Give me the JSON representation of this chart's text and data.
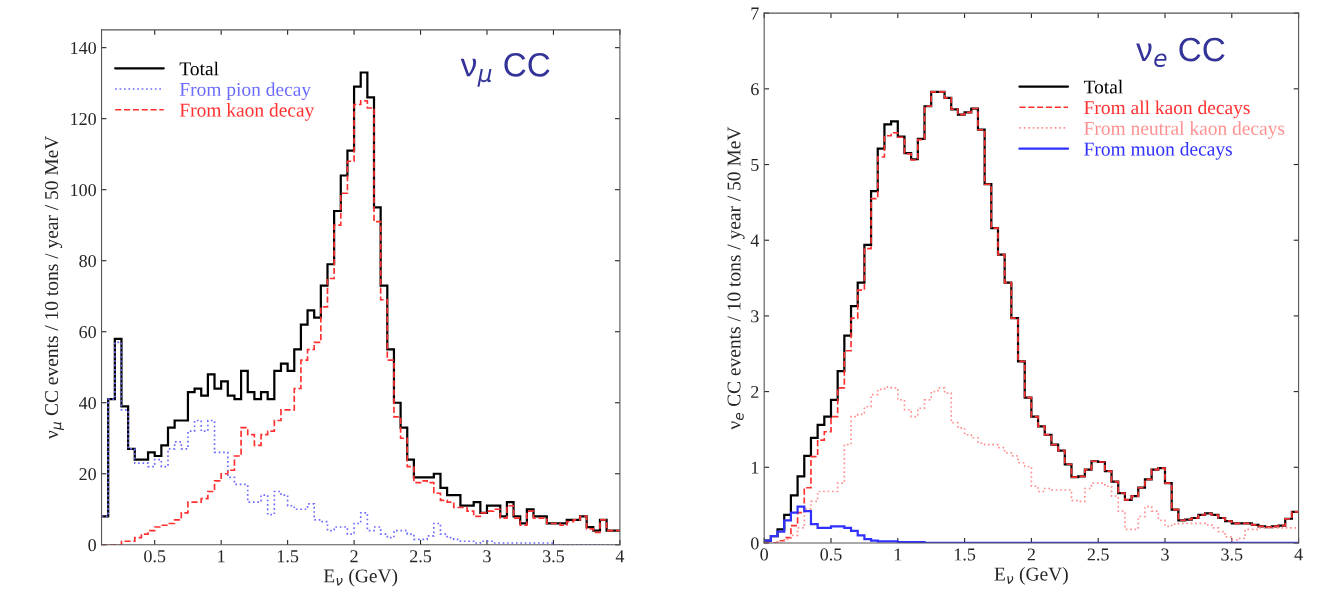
{
  "chart_data": [
    {
      "type": "histogram",
      "xlabel": "E$_{ν}$ (GeV)",
      "ylabel": "ν$_{μ}$ CC events / 10 tons / year / 50 MeV",
      "annotations": [
        "ν$_{μ}$ CC"
      ],
      "legend": "top left",
      "xlim": [
        0.1,
        4
      ],
      "ylim": [
        0,
        145
      ],
      "xticks": [
        0.5,
        1,
        1.5,
        2,
        2.5,
        3,
        3.5,
        4
      ],
      "yticks": [
        0,
        20,
        40,
        60,
        80,
        100,
        120,
        140
      ],
      "bins": [
        0.1,
        0.15,
        0.2,
        0.25,
        0.3,
        0.35,
        0.4,
        0.45,
        0.5,
        0.55,
        0.6,
        0.65,
        0.7,
        0.75,
        0.8,
        0.85,
        0.9,
        0.95,
        1.0,
        1.05,
        1.1,
        1.15,
        1.2,
        1.25,
        1.3,
        1.35,
        1.4,
        1.45,
        1.5,
        1.55,
        1.6,
        1.65,
        1.7,
        1.75,
        1.8,
        1.85,
        1.9,
        1.95,
        2.0,
        2.05,
        2.1,
        2.15,
        2.2,
        2.25,
        2.3,
        2.35,
        2.4,
        2.45,
        2.5,
        2.55,
        2.6,
        2.65,
        2.7,
        2.75,
        2.8,
        2.85,
        2.9,
        2.95,
        3.0,
        3.05,
        3.1,
        3.15,
        3.2,
        3.25,
        3.3,
        3.35,
        3.4,
        3.45,
        3.5,
        3.55,
        3.6,
        3.65,
        3.7,
        3.75,
        3.8,
        3.85,
        3.9,
        3.95,
        4.0
      ],
      "series": [
        {
          "name": "Total",
          "color": "#000000",
          "line_style": "solid",
          "values": [
            8,
            41,
            58,
            39,
            27,
            24,
            24,
            26,
            25,
            28,
            33,
            35,
            35,
            43,
            44,
            42,
            48,
            44,
            46,
            42,
            41,
            49,
            43,
            41,
            43,
            41,
            49,
            51,
            49,
            55,
            62,
            66,
            64,
            73,
            79,
            94,
            104,
            111,
            129,
            133,
            126,
            95,
            73,
            55,
            40,
            33,
            24,
            19,
            19,
            19,
            20,
            16,
            14,
            14,
            11,
            11,
            12,
            9,
            11,
            11,
            8,
            12,
            8,
            6,
            10,
            8,
            8,
            6,
            6,
            6,
            7,
            7,
            8,
            5,
            4,
            7,
            4,
            4
          ]
        },
        {
          "name": "From pion decay",
          "color": "#6a6aff",
          "line_style": "dotted",
          "values": [
            8,
            41,
            57,
            38,
            27,
            23,
            23,
            22,
            24,
            22,
            27,
            29,
            27,
            32,
            35,
            32,
            35,
            26,
            26,
            19,
            17,
            17,
            12,
            12,
            14,
            8.5,
            15,
            14,
            11,
            10,
            10,
            11.5,
            7,
            6.5,
            4,
            5,
            5,
            3,
            6,
            9,
            4,
            5,
            3,
            2,
            4,
            4,
            3,
            1.5,
            1.5,
            2.5,
            6,
            3,
            2,
            1.5,
            1,
            1,
            0.5,
            1,
            1,
            0.5,
            0.5,
            0.5,
            0.5,
            0.5,
            0.5,
            0.5,
            0.5,
            0.5,
            0,
            0,
            0,
            0,
            0,
            0,
            0,
            0,
            0,
            0
          ]
        },
        {
          "name": "From kaon decay",
          "color": "#ff3030",
          "line_style": "dashed",
          "values": [
            0,
            0,
            0,
            1,
            1,
            2,
            3,
            4,
            5,
            5.5,
            6,
            7,
            9,
            12,
            12,
            13,
            15,
            18,
            20,
            21,
            25,
            33,
            31,
            28,
            31,
            32,
            35,
            38,
            38,
            44,
            52,
            55,
            57,
            67,
            75,
            90,
            99,
            108,
            124,
            125,
            123,
            91,
            69,
            52,
            36,
            30,
            22,
            17.5,
            18,
            17.5,
            14.5,
            12.5,
            12,
            10.5,
            10.5,
            9.5,
            8,
            9,
            9.5,
            10,
            7.5,
            11,
            7.5,
            5.5,
            9.5,
            7.5,
            7.5,
            6,
            6,
            5.5,
            6.5,
            7,
            8,
            4.5,
            3.5,
            7,
            4,
            4
          ]
        }
      ]
    },
    {
      "type": "histogram",
      "xlabel": "E$_{ν}$ (GeV)",
      "ylabel": "ν$_{e}$ CC events / 10 tons / year / 50 MeV",
      "annotations": [
        "ν$_{e}$ CC"
      ],
      "legend": "top right",
      "xlim": [
        0,
        4
      ],
      "ylim": [
        0,
        7
      ],
      "xticks": [
        0,
        0.5,
        1,
        1.5,
        2,
        2.5,
        3,
        3.5,
        4
      ],
      "yticks": [
        0,
        1,
        2,
        3,
        4,
        5,
        6,
        7
      ],
      "bins": [
        0.0,
        0.05,
        0.1,
        0.15,
        0.2,
        0.25,
        0.3,
        0.35,
        0.4,
        0.45,
        0.5,
        0.55,
        0.6,
        0.65,
        0.7,
        0.75,
        0.8,
        0.85,
        0.9,
        0.95,
        1.0,
        1.05,
        1.1,
        1.15,
        1.2,
        1.25,
        1.3,
        1.35,
        1.4,
        1.45,
        1.5,
        1.55,
        1.6,
        1.65,
        1.7,
        1.75,
        1.8,
        1.85,
        1.9,
        1.95,
        2.0,
        2.05,
        2.1,
        2.15,
        2.2,
        2.25,
        2.3,
        2.35,
        2.4,
        2.45,
        2.5,
        2.55,
        2.6,
        2.65,
        2.7,
        2.75,
        2.8,
        2.85,
        2.9,
        2.95,
        3.0,
        3.05,
        3.1,
        3.15,
        3.2,
        3.25,
        3.3,
        3.35,
        3.4,
        3.45,
        3.5,
        3.55,
        3.6,
        3.65,
        3.7,
        3.75,
        3.8,
        3.85,
        3.9,
        3.95,
        4.0
      ],
      "series": [
        {
          "name": "Total",
          "color": "#000000",
          "line_style": "solid",
          "values": [
            0.03,
            0.09,
            0.18,
            0.37,
            0.63,
            0.88,
            1.15,
            1.39,
            1.56,
            1.67,
            1.89,
            2.27,
            2.74,
            3.13,
            3.44,
            3.94,
            4.65,
            5.21,
            5.53,
            5.57,
            5.37,
            5.15,
            5.07,
            5.34,
            5.77,
            5.96,
            5.96,
            5.88,
            5.73,
            5.66,
            5.69,
            5.74,
            5.46,
            4.74,
            4.16,
            3.81,
            3.44,
            2.97,
            2.4,
            1.92,
            1.67,
            1.54,
            1.43,
            1.3,
            1.22,
            1.04,
            0.87,
            0.88,
            0.97,
            1.08,
            1.07,
            0.95,
            0.81,
            0.66,
            0.57,
            0.62,
            0.73,
            0.84,
            0.97,
            0.99,
            0.79,
            0.44,
            0.3,
            0.31,
            0.33,
            0.37,
            0.39,
            0.37,
            0.33,
            0.29,
            0.26,
            0.26,
            0.26,
            0.24,
            0.22,
            0.21,
            0.22,
            0.23,
            0.32,
            0.41
          ]
        },
        {
          "name": "From all kaon decays",
          "color": "#ff3030",
          "line_style": "dashed",
          "values": [
            0,
            0,
            0.03,
            0.07,
            0.23,
            0.4,
            0.73,
            1.14,
            1.36,
            1.47,
            1.67,
            2.05,
            2.54,
            2.97,
            3.34,
            3.89,
            4.55,
            5.1,
            5.38,
            5.42,
            5.36,
            5.14,
            5.06,
            5.33,
            5.77,
            5.96,
            5.96,
            5.88,
            5.73,
            5.66,
            5.69,
            5.74,
            5.46,
            4.74,
            4.16,
            3.81,
            3.44,
            2.97,
            2.4,
            1.92,
            1.67,
            1.54,
            1.43,
            1.3,
            1.22,
            1.04,
            0.87,
            0.88,
            0.97,
            1.08,
            1.07,
            0.95,
            0.81,
            0.66,
            0.57,
            0.62,
            0.73,
            0.84,
            0.97,
            0.99,
            0.79,
            0.44,
            0.3,
            0.31,
            0.33,
            0.37,
            0.39,
            0.37,
            0.33,
            0.29,
            0.26,
            0.26,
            0.26,
            0.24,
            0.22,
            0.21,
            0.22,
            0.23,
            0.32,
            0.41
          ]
        },
        {
          "name": "From neutral kaon decays",
          "color": "#ff9090",
          "line_style": "dotted",
          "values": [
            0,
            0,
            0.02,
            0.05,
            0.1,
            0.2,
            0.45,
            0.55,
            0.68,
            0.68,
            0.68,
            0.79,
            1.3,
            1.67,
            1.7,
            1.8,
            1.96,
            2.03,
            2.06,
            2.05,
            1.89,
            1.76,
            1.67,
            1.78,
            1.89,
            2.0,
            2.05,
            1.98,
            1.59,
            1.52,
            1.43,
            1.39,
            1.32,
            1.3,
            1.3,
            1.26,
            1.19,
            1.15,
            1.06,
            1.01,
            0.75,
            0.68,
            0.72,
            0.7,
            0.7,
            0.7,
            0.56,
            0.55,
            0.72,
            0.79,
            0.79,
            0.75,
            0.62,
            0.42,
            0.18,
            0.18,
            0.35,
            0.48,
            0.42,
            0.3,
            0.22,
            0.25,
            0.26,
            0.26,
            0.26,
            0.26,
            0.24,
            0.2,
            0.15,
            0.08,
            0.04,
            0.06,
            0.18,
            0.18,
            0.2,
            0.2,
            0.2,
            0.2,
            0.2,
            0.2
          ]
        },
        {
          "name": "From muon decays",
          "color": "#3030ff",
          "line_style": "solid",
          "values": [
            0.03,
            0.09,
            0.15,
            0.3,
            0.4,
            0.48,
            0.42,
            0.25,
            0.2,
            0.2,
            0.22,
            0.22,
            0.2,
            0.16,
            0.1,
            0.05,
            0.03,
            0.02,
            0.02,
            0.02,
            0.01,
            0.01,
            0.01,
            0.01,
            0,
            0,
            0,
            0,
            0,
            0,
            0,
            0,
            0,
            0,
            0,
            0,
            0,
            0,
            0,
            0,
            0,
            0,
            0,
            0,
            0,
            0,
            0,
            0,
            0,
            0,
            0,
            0,
            0,
            0,
            0,
            0,
            0,
            0,
            0,
            0,
            0,
            0,
            0,
            0,
            0,
            0,
            0,
            0,
            0,
            0,
            0,
            0,
            0,
            0,
            0,
            0,
            0,
            0,
            0,
            0
          ]
        }
      ]
    }
  ]
}
